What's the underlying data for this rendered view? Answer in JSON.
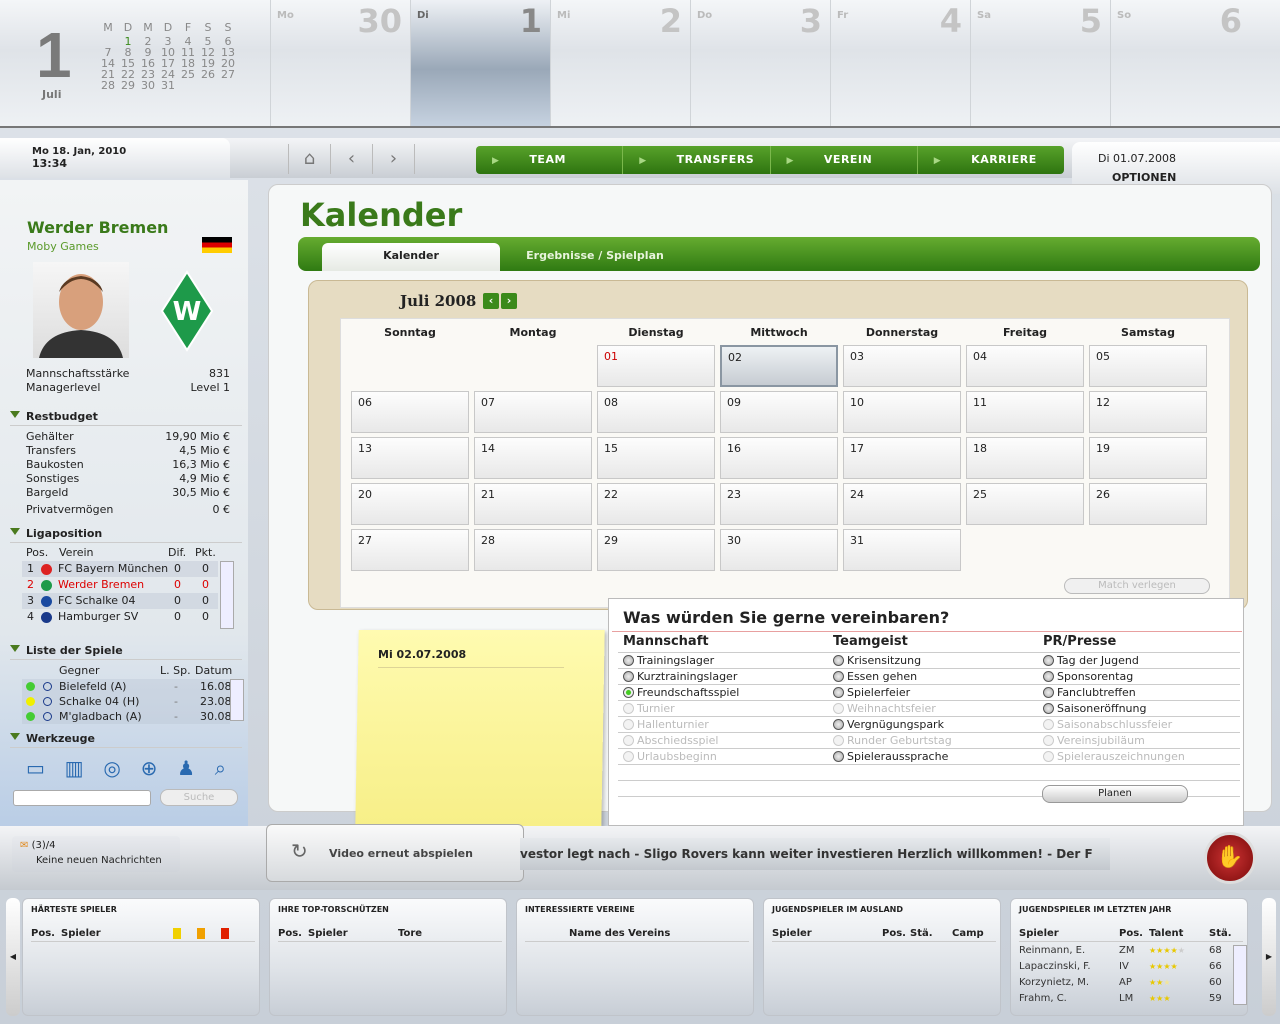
{
  "top": {
    "big_day": "1",
    "month": "Juli",
    "weekdays": [
      "M",
      "D",
      "M",
      "D",
      "F",
      "S",
      "S"
    ],
    "mini_days": [
      "",
      "1",
      "2",
      "3",
      "4",
      "5",
      "6",
      "7",
      "8",
      "9",
      "10",
      "11",
      "12",
      "13",
      "14",
      "15",
      "16",
      "17",
      "18",
      "19",
      "20",
      "21",
      "22",
      "23",
      "24",
      "25",
      "26",
      "27",
      "28",
      "29",
      "30",
      "31"
    ],
    "days": [
      {
        "wd": "Mo",
        "n": "30"
      },
      {
        "wd": "Di",
        "n": "1"
      },
      {
        "wd": "Mi",
        "n": "2"
      },
      {
        "wd": "Do",
        "n": "3"
      },
      {
        "wd": "Fr",
        "n": "4"
      },
      {
        "wd": "Sa",
        "n": "5"
      },
      {
        "wd": "So",
        "n": "6"
      }
    ]
  },
  "nav": {
    "date": "Mo 18. Jan, 2010",
    "time": "13:34",
    "items": [
      "TEAM",
      "TRANSFERS",
      "VEREIN",
      "KARRIERE"
    ],
    "game_date": "Di 01.07.2008",
    "options": "OPTIONEN"
  },
  "sidebar": {
    "team": "Werder Bremen",
    "company": "Moby Games",
    "stats": [
      [
        "Mannschaftsstärke",
        "831"
      ],
      [
        "Managerlevel",
        "Level 1"
      ]
    ],
    "budget_title": "Restbudget",
    "budget": [
      [
        "Gehälter",
        "19,90 Mio €"
      ],
      [
        "Transfers",
        "4,5 Mio €"
      ],
      [
        "Baukosten",
        "16,3 Mio €"
      ],
      [
        "Sonstiges",
        "4,9 Mio €"
      ],
      [
        "Bargeld",
        "30,5 Mio €"
      ],
      [
        "Privatvermögen",
        "0 €"
      ]
    ],
    "league_title": "Ligaposition",
    "league_headers": [
      "Pos.",
      "Verein",
      "Dif.",
      "Pkt."
    ],
    "league": [
      [
        "1",
        "FC Bayern München",
        "0",
        "0"
      ],
      [
        "2",
        "Werder Bremen",
        "0",
        "0"
      ],
      [
        "3",
        "FC Schalke 04",
        "0",
        "0"
      ],
      [
        "4",
        "Hamburger SV",
        "0",
        "0"
      ]
    ],
    "games_title": "Liste der Spiele",
    "games_headers": [
      "Gegner",
      "L. Sp.",
      "Datum"
    ],
    "games": [
      {
        "status": "#44cc33",
        "opp": "Bielefeld (A)",
        "l": "-",
        "date": "16.08"
      },
      {
        "status": "#f0f000",
        "opp": "Schalke 04 (H)",
        "l": "-",
        "date": "23.08"
      },
      {
        "status": "#44cc33",
        "opp": "M'gladbach (A)",
        "l": "-",
        "date": "30.08"
      }
    ],
    "tools_title": "Werkzeuge",
    "search_placeholder": "",
    "search_btn": "Suche"
  },
  "main": {
    "title": "Kalender",
    "tabs": [
      "Kalender",
      "Ergebnisse / Spielplan"
    ],
    "month": "Juli 2008",
    "weekdays": [
      "Sonntag",
      "Montag",
      "Dienstag",
      "Mittwoch",
      "Donnerstag",
      "Freitag",
      "Samstag"
    ],
    "first_weekday_index": 2,
    "days_in_month": 31,
    "selected_day": "02",
    "match_btn": "Match verlegen",
    "note_date": "Mi 02.07.2008"
  },
  "dialog": {
    "title": "Was würden Sie gerne vereinbaren?",
    "columns": [
      {
        "title": "Mannschaft",
        "options": [
          {
            "l": "Trainingslager",
            "s": "n"
          },
          {
            "l": "Kurztrainingslager",
            "s": "n"
          },
          {
            "l": "Freundschaftsspiel",
            "s": "on"
          },
          {
            "l": "Turnier",
            "s": "dis"
          },
          {
            "l": "Hallenturnier",
            "s": "dis"
          },
          {
            "l": "Abschiedsspiel",
            "s": "dis"
          },
          {
            "l": "Urlaubsbeginn",
            "s": "dis"
          }
        ]
      },
      {
        "title": "Teamgeist",
        "options": [
          {
            "l": "Krisensitzung",
            "s": "n"
          },
          {
            "l": "Essen gehen",
            "s": "n"
          },
          {
            "l": "Spielerfeier",
            "s": "n"
          },
          {
            "l": "Weihnachtsfeier",
            "s": "dis"
          },
          {
            "l": "Vergnügungspark",
            "s": "n"
          },
          {
            "l": "Runder Geburtstag",
            "s": "dis"
          },
          {
            "l": "Spieleraussprache",
            "s": "n"
          }
        ]
      },
      {
        "title": "PR/Presse",
        "options": [
          {
            "l": "Tag der Jugend",
            "s": "n"
          },
          {
            "l": "Sponsorentag",
            "s": "n"
          },
          {
            "l": "Fanclubtreffen",
            "s": "n"
          },
          {
            "l": "Saisoneröffnung",
            "s": "n"
          },
          {
            "l": "Saisonabschlussfeier",
            "s": "dis"
          },
          {
            "l": "Vereinsjubiläum",
            "s": "dis"
          },
          {
            "l": "Spielerauszeichnungen",
            "s": "dis"
          }
        ]
      }
    ],
    "plan_btn": "Planen"
  },
  "bottom": {
    "msg_count": "(3)/4",
    "msg_text": "Keine neuen Nachrichten",
    "video_btn": "Video erneut abspielen",
    "ticker": "vestor legt nach - Sligo Rovers kann weiter investieren      Herzlich willkommen! - Der F"
  },
  "panels": [
    {
      "title": "HÄRTESTE SPIELER",
      "cols": [
        "Pos.",
        "Spieler"
      ]
    },
    {
      "title": "IHRE TOP-TORSCHÜTZEN",
      "cols": [
        "Pos.",
        "Spieler",
        "Tore"
      ]
    },
    {
      "title": "INTERESSIERTE VEREINE",
      "cols": [
        "Name des Vereins"
      ]
    },
    {
      "title": "JUGENDSPIELER IM AUSLAND",
      "cols": [
        "Spieler",
        "Pos.",
        "Stä.",
        "Camp"
      ]
    },
    {
      "title": "JUGENDSPIELER IM LETZTEN JAHR",
      "cols": [
        "Spieler",
        "Pos.",
        "Talent",
        "Stä."
      ],
      "rows": [
        {
          "name": "Reinmann, E.",
          "pos": "ZM",
          "talent": 4,
          "sta": "68"
        },
        {
          "name": "Lapaczinski, F.",
          "pos": "IV",
          "talent": 4,
          "sta": "66"
        },
        {
          "name": "Korzynietz, M.",
          "pos": "AP",
          "talent": 2.5,
          "sta": "60"
        },
        {
          "name": "Frahm, C.",
          "pos": "LM",
          "talent": 3,
          "sta": "59"
        }
      ]
    }
  ]
}
